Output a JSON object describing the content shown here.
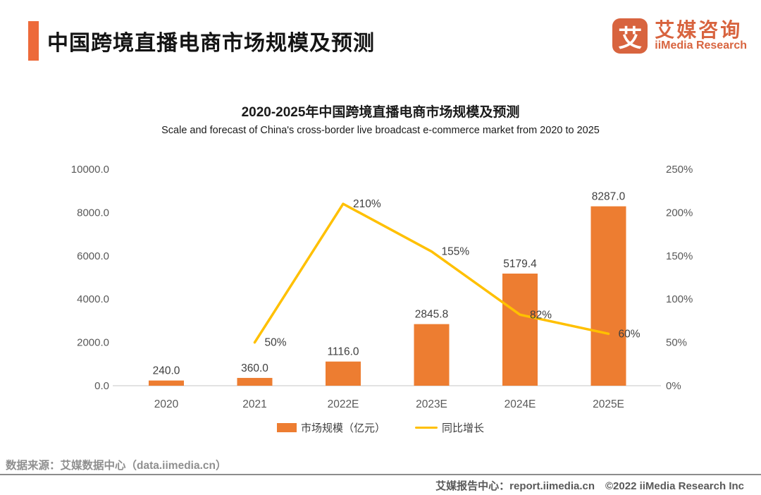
{
  "header": {
    "title": "中国跨境直播电商市场规模及预测",
    "logo": {
      "icon_glyph": "艾",
      "name_cn": "艾媒咨询",
      "name_en": "iiMedia Research"
    }
  },
  "chart": {
    "title": "2020-2025年中国跨境直播电商市场规模及预测",
    "subtitle": "Scale and forecast of China's cross-border live broadcast e-commerce market from 2020 to 2025"
  },
  "chart_data": {
    "type": "bar+line",
    "title": "2020-2025年中国跨境直播电商市场规模及预测",
    "subtitle": "Scale and forecast of China's cross-border live broadcast e-commerce market from 2020 to 2025",
    "categories": [
      "2020",
      "2021",
      "2022E",
      "2023E",
      "2024E",
      "2025E"
    ],
    "series": [
      {
        "name": "市场规模（亿元）",
        "type": "bar",
        "axis": "left",
        "color": "#ED7D31",
        "values": [
          240.0,
          360.0,
          1116.0,
          2845.8,
          5179.4,
          8287.0
        ],
        "labels": [
          "240.0",
          "360.0",
          "1116.0",
          "2845.8",
          "5179.4",
          "8287.0"
        ]
      },
      {
        "name": "同比增长",
        "type": "line",
        "axis": "right",
        "color": "#FFC000",
        "values": [
          null,
          50,
          210,
          155,
          82,
          60
        ],
        "labels": [
          null,
          "50%",
          "210%",
          "155%",
          "82%",
          "60%"
        ]
      }
    ],
    "left_axis": {
      "min": 0,
      "max": 10000,
      "step": 2000,
      "ticks": [
        "0.0",
        "2000.0",
        "4000.0",
        "6000.0",
        "8000.0",
        "10000.0"
      ]
    },
    "right_axis": {
      "min": 0,
      "max": 250,
      "step": 50,
      "ticks": [
        "0%",
        "50%",
        "100%",
        "150%",
        "200%",
        "250%"
      ]
    },
    "grid": false,
    "legend_position": "bottom"
  },
  "footer": {
    "source": "数据来源：艾媒数据中心（data.iimedia.cn）",
    "report_center": "艾媒报告中心：report.iimedia.cn　©2022  iiMedia Research  Inc"
  }
}
